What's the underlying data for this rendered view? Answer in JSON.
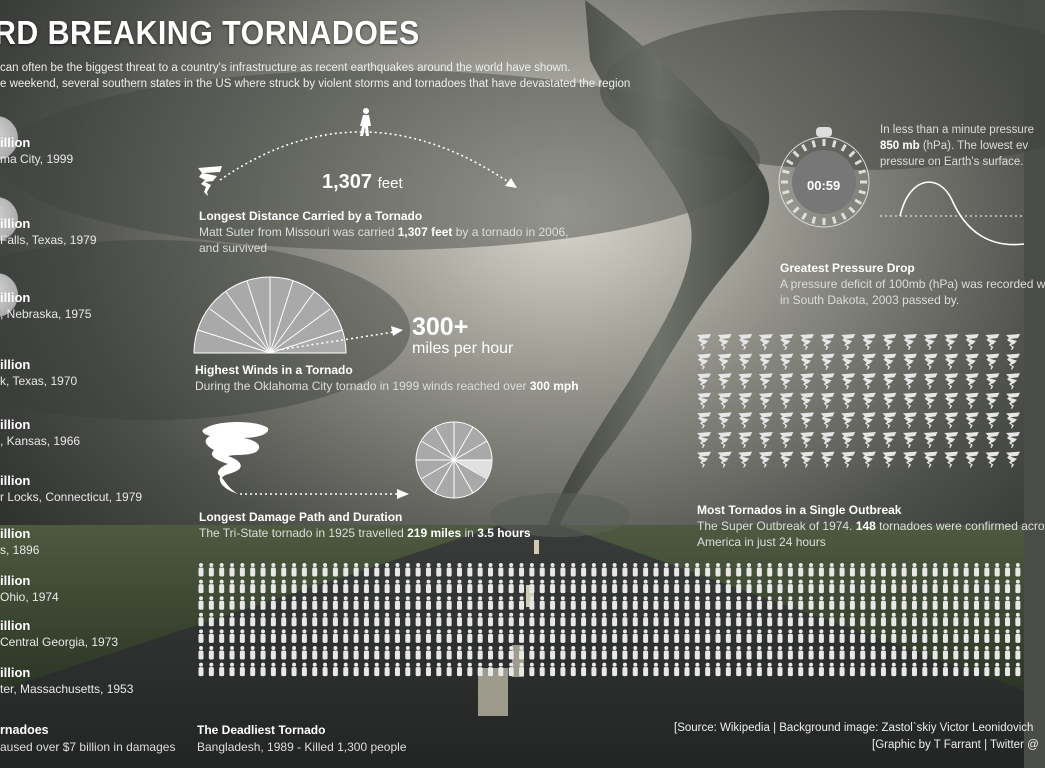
{
  "header": {
    "title": "RD BREAKING TORNADOES",
    "intro_line1": "can often be the biggest threat to a country's infrastructure as recent earthquakes around the world have shown.",
    "intro_line2": "e weekend, several southern states in the US where struck by violent storms and tornadoes that have devastated the region"
  },
  "costliest": {
    "items": [
      {
        "amount": "illion",
        "place": "ma City, 1999"
      },
      {
        "amount": "illion",
        "place": "Falls, Texas, 1979"
      },
      {
        "amount": "illion",
        "place": ", Nebraska, 1975"
      },
      {
        "amount": "illion",
        "place": "k, Texas, 1970"
      },
      {
        "amount": "illion",
        "place": ", Kansas, 1966"
      },
      {
        "amount": "illion",
        "place": "r Locks, Connecticut, 1979"
      },
      {
        "amount": "illion",
        "place": "s, 1896"
      },
      {
        "amount": "illion",
        "place": "Ohio, 1974"
      },
      {
        "amount": "illion",
        "place": "Central Georgia, 1973"
      },
      {
        "amount": "illion",
        "place": "ter, Massachusetts, 1953"
      }
    ],
    "title": "rnadoes",
    "subtitle": "aused over $7 billion in damages"
  },
  "distance": {
    "value": "1,307",
    "unit": "feet",
    "title": "Longest Distance Carried by a Tornado",
    "desc_pre": "Matt Suter from Missouri was carried ",
    "desc_bold": "1,307 feet",
    "desc_post": " by a tornado in 2006,",
    "desc_line2": "and survived"
  },
  "winds": {
    "value": "300+",
    "unit": "miles per hour",
    "title": "Highest Winds in a Tornado",
    "desc_pre": "During the Oklahoma City tornado in 1999 winds reached over ",
    "desc_bold": "300 mph"
  },
  "path": {
    "title": "Longest Damage Path and Duration",
    "desc_pre": "The Tri-State tornado in 1925 travelled ",
    "desc_bold1": "219 miles",
    "desc_mid": " in ",
    "desc_bold2": "3.5 hours"
  },
  "pressure": {
    "timer": "00:59",
    "text_line1": "In less than a minute pressure",
    "text_line2_bold": "850 mb",
    "text_line2_rest": " (hPa). The lowest ev",
    "text_line3": "pressure on Earth's surface.",
    "title": "Greatest Pressure Drop",
    "desc_line1": "A pressure deficit of 100mb (hPa) was recorded w",
    "desc_line2": "in South Dakota, 2003 passed by."
  },
  "outbreak": {
    "count": 148,
    "title": "Most Tornados in a Single Outbreak",
    "desc_pre": "The Super Outbreak of 1974. ",
    "desc_bold": "148",
    "desc_post": " tornadoes were confirmed acro",
    "desc_line2": "America in just 24 hours"
  },
  "deadliest": {
    "count": 1300,
    "title": "The Deadliest Tornado",
    "desc": "Bangladesh, 1989 - Killed 1,300 people"
  },
  "source": {
    "line1": "[Source: Wikipedia | Background image: Zastol`skiy Victor Leonidovich",
    "line2": "[Graphic by T Farrant | Twitter @"
  }
}
